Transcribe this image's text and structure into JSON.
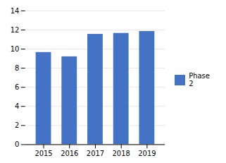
{
  "chart_data": {
    "type": "bar",
    "categories": [
      "2015",
      "2016",
      "2017",
      "2018",
      "2019"
    ],
    "series": [
      {
        "name": "Phase 2",
        "color": "#4472C4",
        "values": [
          9.65,
          9.2,
          11.55,
          11.65,
          11.85
        ]
      }
    ],
    "ylim": [
      0,
      14
    ],
    "yticks": [
      0,
      2,
      4,
      6,
      8,
      10,
      12,
      14
    ],
    "grid": true,
    "legend": "right"
  }
}
